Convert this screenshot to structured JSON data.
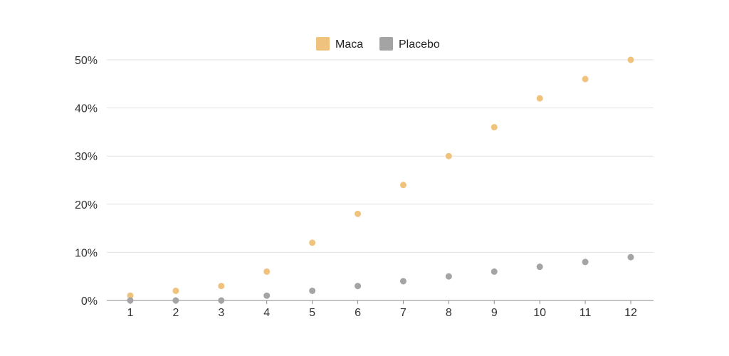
{
  "chart_data": {
    "type": "scatter",
    "title": "",
    "xlabel": "",
    "ylabel": "",
    "x": [
      1,
      2,
      3,
      4,
      5,
      6,
      7,
      8,
      9,
      10,
      11,
      12
    ],
    "x_tick_labels": [
      "1",
      "2",
      "3",
      "4",
      "5",
      "6",
      "7",
      "8",
      "9",
      "10",
      "11",
      "12"
    ],
    "ylim": [
      0,
      50
    ],
    "y_ticks": [
      0,
      10,
      20,
      30,
      40,
      50
    ],
    "y_tick_labels": [
      "0%",
      "10%",
      "20%",
      "30%",
      "40%",
      "50%"
    ],
    "grid": true,
    "legend_position": "top-center",
    "series": [
      {
        "name": "Maca",
        "color": "#EFC27E",
        "values": [
          1,
          2,
          3,
          6,
          12,
          18,
          24,
          30,
          36,
          42,
          46,
          50
        ]
      },
      {
        "name": "Placebo",
        "color": "#A4A4A4",
        "values": [
          0,
          0,
          0,
          1,
          2,
          3,
          4,
          5,
          6,
          7,
          8,
          9
        ]
      }
    ]
  }
}
